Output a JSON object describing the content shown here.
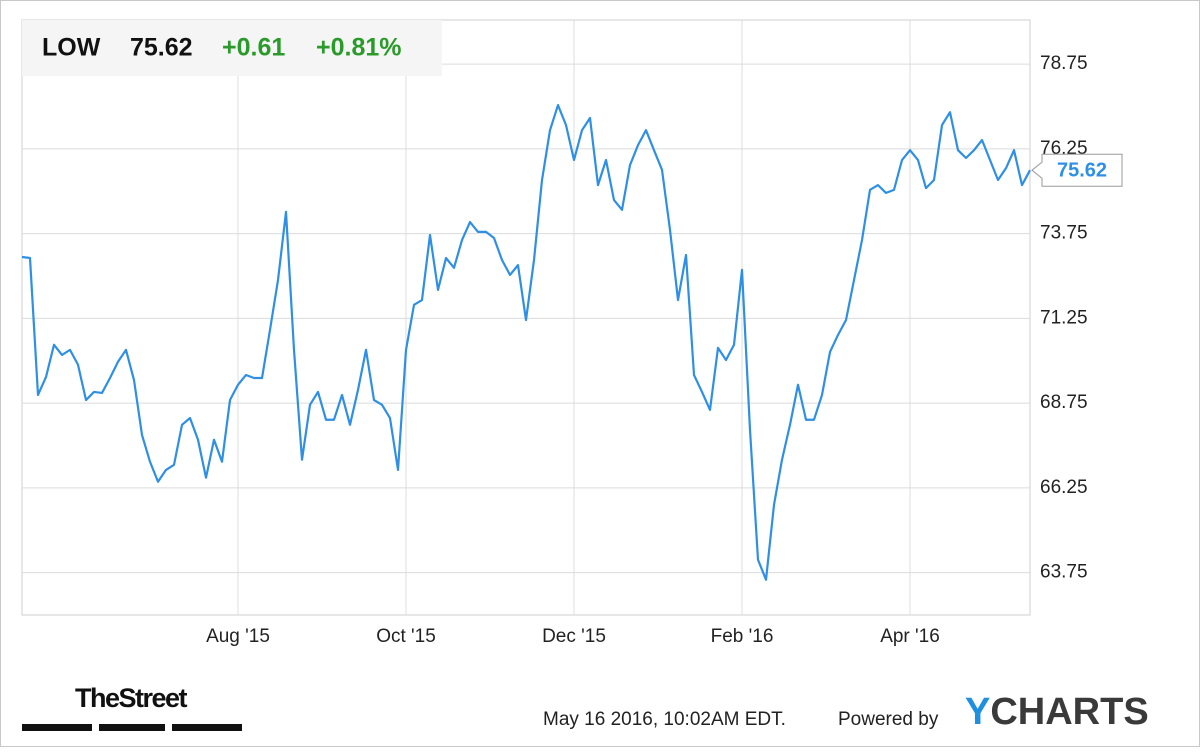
{
  "chart_data": {
    "type": "line",
    "header": {
      "symbol": "LOW",
      "price": "75.62",
      "change": "+0.61",
      "change_percent": "+0.81%"
    },
    "categories": [
      null,
      null,
      null,
      null,
      null,
      null,
      null,
      null,
      null,
      null,
      null,
      null,
      null,
      null,
      null,
      null,
      null,
      null,
      null,
      null,
      null,
      null,
      null,
      null,
      null,
      null,
      null,
      "Aug '15",
      null,
      null,
      null,
      null,
      null,
      null,
      null,
      null,
      null,
      null,
      null,
      null,
      null,
      null,
      null,
      null,
      null,
      null,
      null,
      null,
      "Oct '15",
      null,
      null,
      null,
      null,
      null,
      null,
      null,
      null,
      null,
      null,
      null,
      null,
      null,
      null,
      null,
      null,
      null,
      null,
      null,
      null,
      "Dec '15",
      null,
      null,
      null,
      null,
      null,
      null,
      null,
      null,
      null,
      null,
      null,
      null,
      null,
      null,
      null,
      null,
      null,
      null,
      null,
      null,
      "Feb '16",
      null,
      null,
      null,
      null,
      null,
      null,
      null,
      null,
      null,
      null,
      null,
      null,
      null,
      null,
      null,
      null,
      null,
      null,
      null,
      null,
      "Apr '16",
      null,
      null,
      null,
      null,
      null,
      null,
      null,
      null,
      null,
      null,
      null,
      null,
      null,
      null,
      null
    ],
    "series": [
      {
        "name": "LOW",
        "color": "#2f8fe4",
        "values": [
          73.06,
          73.03,
          68.99,
          69.52,
          70.47,
          70.17,
          70.32,
          69.88,
          68.84,
          69.08,
          69.05,
          69.49,
          69.97,
          70.32,
          69.43,
          67.81,
          67.02,
          66.43,
          66.78,
          66.93,
          68.11,
          68.31,
          67.67,
          66.55,
          67.67,
          67.02,
          68.84,
          69.29,
          69.58,
          69.49,
          69.49,
          70.91,
          72.38,
          74.39,
          70.32,
          67.08,
          68.7,
          69.08,
          68.26,
          68.26,
          68.99,
          68.11,
          69.14,
          70.32,
          68.84,
          68.7,
          68.31,
          66.78,
          70.32,
          71.65,
          71.79,
          73.71,
          72.09,
          73.03,
          72.74,
          73.56,
          74.09,
          73.8,
          73.8,
          73.62,
          72.97,
          72.53,
          72.82,
          71.2,
          72.97,
          75.33,
          76.8,
          77.54,
          76.95,
          75.92,
          76.8,
          77.16,
          75.18,
          75.92,
          74.74,
          74.45,
          75.77,
          76.36,
          76.8,
          76.21,
          75.63,
          73.86,
          71.79,
          73.12,
          69.58,
          69.08,
          68.55,
          70.38,
          70.02,
          70.47,
          72.68,
          67.96,
          64.13,
          63.54,
          65.75,
          67.08,
          68.11,
          69.29,
          68.26,
          68.26,
          68.99,
          70.26,
          70.76,
          71.2,
          72.38,
          73.56,
          75.04,
          75.18,
          74.95,
          75.04,
          75.92,
          76.21,
          75.92,
          75.09,
          75.33,
          76.95,
          77.33,
          76.21,
          75.98,
          76.21,
          76.51,
          75.92,
          75.33,
          75.68,
          76.21,
          75.18,
          75.62
        ]
      }
    ],
    "ylim": [
      62.5,
      80.05
    ],
    "yticks": [
      63.75,
      66.25,
      68.75,
      71.25,
      73.75,
      76.25,
      78.75
    ],
    "grid": true,
    "footer": {
      "brand": "TheStreet",
      "timestamp": "May 16 2016, 10:02AM EDT.",
      "powered_by": "Powered by",
      "provider": "YCHARTS"
    }
  }
}
